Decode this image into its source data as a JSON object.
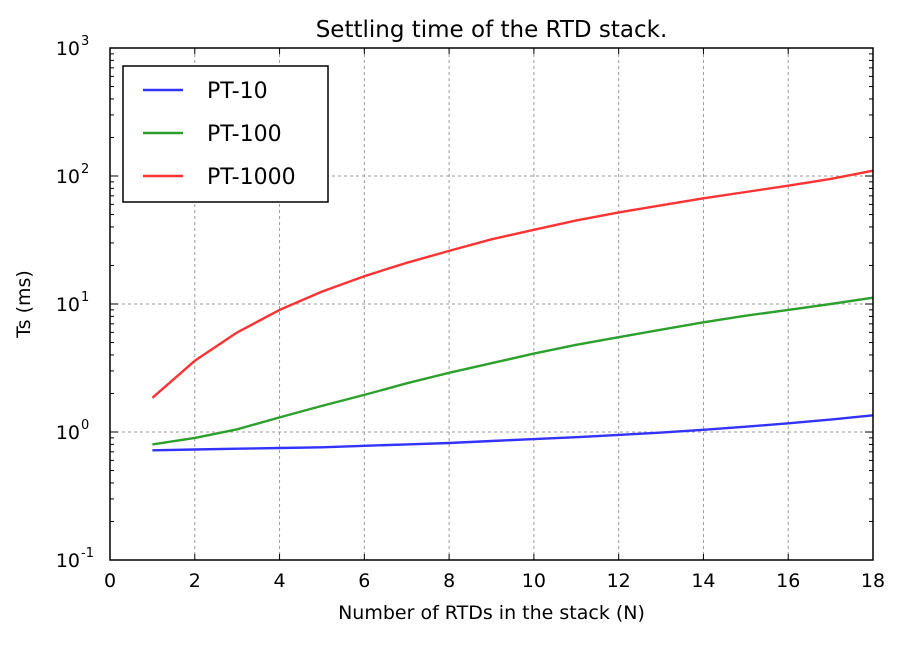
{
  "chart_data": {
    "type": "line",
    "title": "Settling time of the RTD stack.",
    "xlabel": "Number of RTDs in the stack (N)",
    "ylabel": "Ts (ms)",
    "xlim": [
      0,
      18
    ],
    "ylim": [
      0.1,
      1000
    ],
    "yscale": "log",
    "xticks": [
      "0",
      "2",
      "4",
      "6",
      "8",
      "10",
      "12",
      "14",
      "16",
      "18"
    ],
    "yticks": [
      {
        "value": 0.1,
        "base": "10",
        "exp": "-1"
      },
      {
        "value": 1,
        "base": "10",
        "exp": "0"
      },
      {
        "value": 10,
        "base": "10",
        "exp": "1"
      },
      {
        "value": 100,
        "base": "10",
        "exp": "2"
      },
      {
        "value": 1000,
        "base": "10",
        "exp": "3"
      }
    ],
    "grid": true,
    "legend_position": "top-left",
    "x": [
      1,
      2,
      3,
      4,
      5,
      6,
      7,
      8,
      9,
      10,
      11,
      12,
      13,
      14,
      15,
      16,
      17,
      18
    ],
    "series": [
      {
        "name": "PT-10",
        "color": "#3333ff",
        "values": [
          0.72,
          0.73,
          0.74,
          0.75,
          0.76,
          0.78,
          0.8,
          0.82,
          0.85,
          0.88,
          0.91,
          0.95,
          0.99,
          1.04,
          1.1,
          1.17,
          1.25,
          1.35
        ]
      },
      {
        "name": "PT-100",
        "color": "#2ca02c",
        "values": [
          0.8,
          0.9,
          1.05,
          1.3,
          1.6,
          1.95,
          2.4,
          2.9,
          3.45,
          4.1,
          4.8,
          5.5,
          6.3,
          7.2,
          8.1,
          9.0,
          10.0,
          11.2
        ]
      },
      {
        "name": "PT-1000",
        "color": "#ff3333",
        "values": [
          1.85,
          3.6,
          6.0,
          9.0,
          12.5,
          16.5,
          21.0,
          26.0,
          32.0,
          38.0,
          45.0,
          52.0,
          59.0,
          67.0,
          75.0,
          84.0,
          95.0,
          110.0
        ]
      }
    ]
  }
}
